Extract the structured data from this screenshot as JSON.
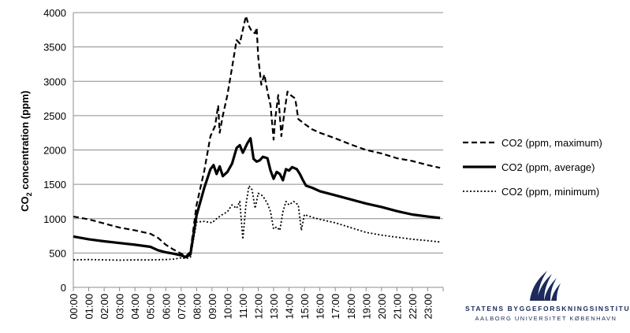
{
  "chart_data": {
    "type": "line",
    "title": "",
    "xlabel": "",
    "ylabel": "CO2 concentration (ppm)",
    "ylabel_main": "CO",
    "ylabel_sub": "2",
    "ylabel_rest": " concentration (ppm)",
    "ylim": [
      0,
      4000
    ],
    "yticks": [
      0,
      500,
      1000,
      1500,
      2000,
      2500,
      3000,
      3500,
      4000
    ],
    "ytick_labels": [
      "0",
      "500",
      "1000",
      "1500",
      "2000",
      "2500",
      "3000",
      "3500",
      "4000"
    ],
    "xlim": [
      0,
      24
    ],
    "xtick_labels": [
      "00:00",
      "01:00",
      "02:00",
      "03:00",
      "04:00",
      "05:00",
      "06:00",
      "07:00",
      "08:00",
      "09:00",
      "10:00",
      "11:00",
      "12:00",
      "13:00",
      "14:00",
      "15:00",
      "16:00",
      "17:00",
      "18:00",
      "19:00",
      "20:00",
      "21:00",
      "22:00",
      "23:00"
    ],
    "grid": "horizontal",
    "legend_position": "right",
    "series": [
      {
        "name": "CO2 (ppm, maximum)",
        "style": "dashed",
        "points": [
          [
            0,
            1030
          ],
          [
            1,
            990
          ],
          [
            2,
            930
          ],
          [
            3,
            870
          ],
          [
            4,
            830
          ],
          [
            5,
            780
          ],
          [
            5.5,
            720
          ],
          [
            6,
            620
          ],
          [
            6.5,
            550
          ],
          [
            7,
            490
          ],
          [
            7.3,
            450
          ],
          [
            7.6,
            520
          ],
          [
            8,
            1200
          ],
          [
            8.5,
            1700
          ],
          [
            8.9,
            2200
          ],
          [
            9.2,
            2350
          ],
          [
            9.4,
            2650
          ],
          [
            9.5,
            2250
          ],
          [
            9.7,
            2500
          ],
          [
            10,
            2800
          ],
          [
            10.3,
            3200
          ],
          [
            10.6,
            3600
          ],
          [
            10.8,
            3550
          ],
          [
            11,
            3750
          ],
          [
            11.2,
            3950
          ],
          [
            11.4,
            3800
          ],
          [
            11.6,
            3720
          ],
          [
            11.8,
            3700
          ],
          [
            11.9,
            3780
          ],
          [
            12,
            3350
          ],
          [
            12.2,
            2950
          ],
          [
            12.4,
            3100
          ],
          [
            12.6,
            2850
          ],
          [
            12.8,
            2650
          ],
          [
            13,
            2150
          ],
          [
            13.1,
            2450
          ],
          [
            13.3,
            2800
          ],
          [
            13.5,
            2200
          ],
          [
            13.7,
            2550
          ],
          [
            13.9,
            2850
          ],
          [
            14.1,
            2800
          ],
          [
            14.4,
            2750
          ],
          [
            14.6,
            2450
          ],
          [
            15,
            2380
          ],
          [
            15.5,
            2300
          ],
          [
            16,
            2250
          ],
          [
            17,
            2170
          ],
          [
            18,
            2080
          ],
          [
            19,
            2000
          ],
          [
            20,
            1950
          ],
          [
            21,
            1880
          ],
          [
            22,
            1840
          ],
          [
            23,
            1780
          ],
          [
            23.8,
            1740
          ]
        ]
      },
      {
        "name": "CO2 (ppm, average)",
        "style": "solid",
        "points": [
          [
            0,
            740
          ],
          [
            1,
            700
          ],
          [
            2,
            670
          ],
          [
            3,
            645
          ],
          [
            4,
            620
          ],
          [
            5,
            590
          ],
          [
            5.5,
            540
          ],
          [
            6,
            510
          ],
          [
            6.5,
            490
          ],
          [
            7,
            465
          ],
          [
            7.3,
            440
          ],
          [
            7.6,
            480
          ],
          [
            8,
            1050
          ],
          [
            8.5,
            1450
          ],
          [
            8.9,
            1720
          ],
          [
            9.1,
            1780
          ],
          [
            9.3,
            1650
          ],
          [
            9.5,
            1760
          ],
          [
            9.7,
            1620
          ],
          [
            10,
            1680
          ],
          [
            10.3,
            1800
          ],
          [
            10.6,
            2030
          ],
          [
            10.8,
            2070
          ],
          [
            11,
            1960
          ],
          [
            11.3,
            2100
          ],
          [
            11.5,
            2170
          ],
          [
            11.7,
            1870
          ],
          [
            11.9,
            1830
          ],
          [
            12.1,
            1850
          ],
          [
            12.3,
            1900
          ],
          [
            12.6,
            1880
          ],
          [
            12.8,
            1700
          ],
          [
            13,
            1580
          ],
          [
            13.2,
            1680
          ],
          [
            13.4,
            1650
          ],
          [
            13.6,
            1560
          ],
          [
            13.8,
            1720
          ],
          [
            14,
            1700
          ],
          [
            14.2,
            1750
          ],
          [
            14.5,
            1720
          ],
          [
            14.7,
            1650
          ],
          [
            14.9,
            1560
          ],
          [
            15.1,
            1480
          ],
          [
            15.5,
            1450
          ],
          [
            16,
            1400
          ],
          [
            17,
            1340
          ],
          [
            18,
            1280
          ],
          [
            19,
            1220
          ],
          [
            20,
            1170
          ],
          [
            21,
            1110
          ],
          [
            22,
            1060
          ],
          [
            23,
            1030
          ],
          [
            23.8,
            1010
          ]
        ]
      },
      {
        "name": "CO2 (ppm, minimum)",
        "style": "dotted",
        "points": [
          [
            0,
            400
          ],
          [
            1,
            405
          ],
          [
            2,
            400
          ],
          [
            3,
            395
          ],
          [
            4,
            400
          ],
          [
            5,
            400
          ],
          [
            6,
            405
          ],
          [
            6.5,
            410
          ],
          [
            7,
            430
          ],
          [
            7.3,
            420
          ],
          [
            7.6,
            440
          ],
          [
            8,
            950
          ],
          [
            8.5,
            960
          ],
          [
            9,
            940
          ],
          [
            9.3,
            1000
          ],
          [
            9.6,
            1050
          ],
          [
            10,
            1100
          ],
          [
            10.3,
            1200
          ],
          [
            10.6,
            1150
          ],
          [
            10.8,
            1250
          ],
          [
            11,
            700
          ],
          [
            11.2,
            1200
          ],
          [
            11.4,
            1480
          ],
          [
            11.6,
            1420
          ],
          [
            11.8,
            1150
          ],
          [
            12,
            1370
          ],
          [
            12.3,
            1330
          ],
          [
            12.6,
            1220
          ],
          [
            12.8,
            1100
          ],
          [
            13,
            850
          ],
          [
            13.2,
            880
          ],
          [
            13.4,
            830
          ],
          [
            13.6,
            1100
          ],
          [
            13.8,
            1250
          ],
          [
            14,
            1200
          ],
          [
            14.3,
            1250
          ],
          [
            14.6,
            1200
          ],
          [
            14.8,
            830
          ],
          [
            15,
            1060
          ],
          [
            15.5,
            1020
          ],
          [
            16,
            990
          ],
          [
            17,
            940
          ],
          [
            18,
            870
          ],
          [
            19,
            800
          ],
          [
            20,
            760
          ],
          [
            21,
            730
          ],
          [
            22,
            700
          ],
          [
            23,
            680
          ],
          [
            23.8,
            660
          ]
        ]
      }
    ]
  },
  "logo": {
    "name": "STATENS BYGGEFORSKNINGSINSTITUT",
    "sub": "AALBORG UNIVERSITET KØBENHAVN",
    "color": "#1c2a5c"
  }
}
